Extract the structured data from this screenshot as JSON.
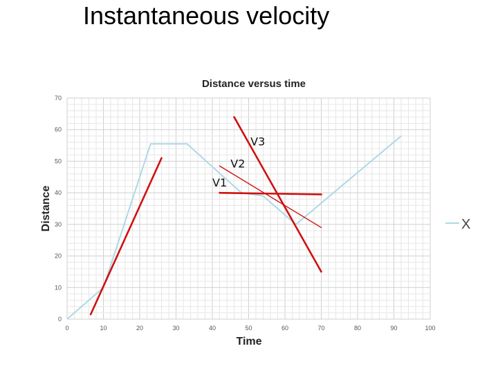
{
  "slide": {
    "title": "Instantaneous velocity"
  },
  "chart_data": {
    "type": "line",
    "title": "Distance versus time",
    "xlabel": "Time",
    "ylabel": "Distance",
    "xlim": [
      0,
      100
    ],
    "ylim": [
      0,
      70
    ],
    "xticks": [
      0,
      10,
      20,
      30,
      40,
      50,
      60,
      70,
      80,
      90,
      100
    ],
    "yticks": [
      0,
      10,
      20,
      30,
      40,
      50,
      60,
      70
    ],
    "grid": true,
    "legend": {
      "position": "right",
      "entries": [
        "X"
      ]
    },
    "series": [
      {
        "name": "X",
        "color": "#add8e6",
        "points": [
          [
            0,
            0
          ],
          [
            6,
            6
          ],
          [
            10,
            10
          ],
          [
            23,
            55.5
          ],
          [
            33,
            55.5
          ],
          [
            48,
            40
          ],
          [
            54,
            39
          ],
          [
            63,
            30
          ],
          [
            92,
            58
          ]
        ]
      }
    ],
    "annotations": [
      {
        "label": "V1",
        "color": "#d01010",
        "from": [
          6.5,
          1.5
        ],
        "to": [
          26,
          51
        ],
        "label_at": [
          40,
          42
        ]
      },
      {
        "label": "V2",
        "color": "#d01010",
        "from": [
          42,
          48.5
        ],
        "to": [
          70,
          29
        ],
        "label_at": [
          45,
          48
        ]
      },
      {
        "label": "V3",
        "color": "#d01010",
        "from": [
          46,
          64
        ],
        "to": [
          70,
          15
        ],
        "label_at": [
          50.5,
          55
        ]
      },
      {
        "label": "",
        "color": "#d01010",
        "from": [
          42,
          40
        ],
        "to": [
          70,
          39.5
        ],
        "label_at": null
      }
    ]
  }
}
